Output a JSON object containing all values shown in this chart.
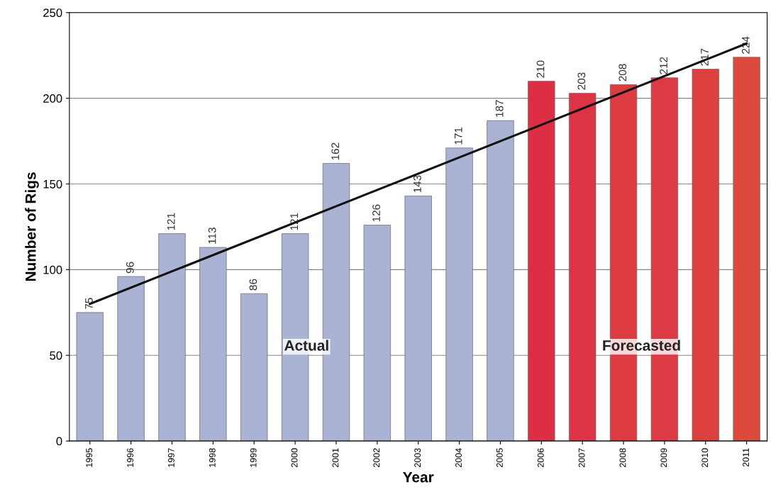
{
  "chart_data": {
    "type": "bar",
    "xlabel": "Year",
    "ylabel": "Number of Rigs",
    "categories": [
      "1995",
      "1996",
      "1997",
      "1998",
      "1999",
      "2000",
      "2001",
      "2002",
      "2003",
      "2004",
      "2005",
      "2006",
      "2007",
      "2008",
      "2009",
      "2010",
      "2011"
    ],
    "series": [
      {
        "values": [
          75,
          96,
          121,
          113,
          86,
          121,
          162,
          126,
          143,
          171,
          187,
          210,
          203,
          208,
          212,
          217,
          224
        ],
        "value_labels": [
          "75",
          "96",
          "121",
          "113",
          "86",
          "121",
          "162",
          "126",
          "143",
          "171",
          "187",
          "210",
          "203",
          "208",
          "212",
          "217",
          "224"
        ],
        "colors": [
          "#aab3d4",
          "#aab3d4",
          "#aab3d4",
          "#aab3d4",
          "#aab3d4",
          "#aab3d4",
          "#aab3d4",
          "#aab3d4",
          "#aab3d4",
          "#aab3d4",
          "#aab3d4",
          "#dc2f45",
          "#dc3445",
          "#dd3b42",
          "#dc3a45",
          "#dc4140",
          "#dd4a3c"
        ]
      },
      {
        "type": "line",
        "values": [
          80,
          null,
          null,
          null,
          null,
          null,
          null,
          null,
          null,
          null,
          null,
          null,
          null,
          null,
          null,
          null,
          232
        ],
        "color": "#111111"
      }
    ],
    "ylim": [
      0,
      250
    ],
    "yticks": [
      0,
      50,
      100,
      150,
      200,
      250
    ],
    "grid": "y",
    "marker": "none",
    "annotations": [
      "Actual",
      "Forecasted"
    ]
  }
}
